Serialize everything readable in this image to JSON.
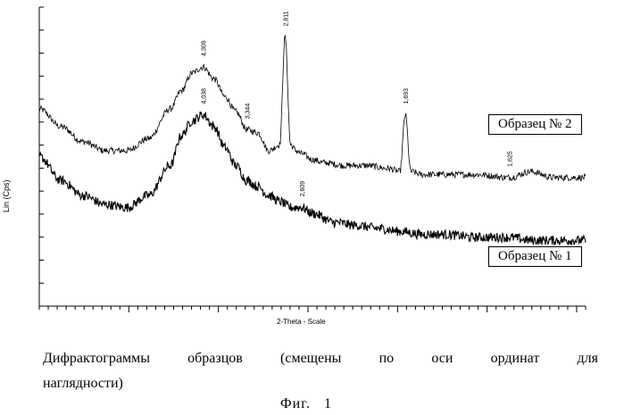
{
  "chart_data": {
    "type": "line",
    "title": "",
    "xlabel": "2-Theta - Scale",
    "ylabel": "Lin (Cps)",
    "xlim": [
      0,
      100
    ],
    "ylim": [
      0,
      100
    ],
    "grid": false,
    "series": [
      {
        "name": "Образец № 2",
        "legend": "Образец № 2",
        "color": "#000000",
        "x": [
          0,
          4,
          8,
          12,
          16,
          20,
          24,
          26,
          28,
          30,
          32,
          34,
          36,
          38,
          40,
          42,
          44,
          45,
          46,
          47,
          48,
          50,
          52,
          56,
          60,
          64,
          66,
          67,
          68,
          70,
          74,
          80,
          86,
          90,
          94,
          100
        ],
        "y": [
          66,
          60,
          55,
          52,
          52,
          56,
          66,
          72,
          78,
          80,
          76,
          70,
          65,
          59,
          58,
          52,
          54,
          90,
          54,
          52,
          51,
          49,
          48,
          47,
          47,
          46,
          45,
          64,
          45,
          44,
          44,
          44,
          43,
          45,
          43,
          43
        ],
        "peaks": [
          {
            "x": 30,
            "label": "4,309"
          },
          {
            "x": 38,
            "label": "3,344"
          },
          {
            "x": 45,
            "label": "2,811"
          },
          {
            "x": 67,
            "label": "1,693"
          },
          {
            "x": 86,
            "label": "1,625"
          }
        ]
      },
      {
        "name": "Образец № 1",
        "legend": "Образец № 1",
        "color": "#000000",
        "x": [
          0,
          4,
          8,
          12,
          16,
          20,
          24,
          26,
          28,
          30,
          32,
          34,
          36,
          38,
          40,
          42,
          44,
          46,
          48,
          50,
          54,
          58,
          62,
          66,
          70,
          74,
          80,
          86,
          90,
          94,
          100
        ],
        "y": [
          50,
          42,
          37,
          34,
          33,
          37,
          47,
          57,
          62,
          64,
          60,
          53,
          47,
          42,
          40,
          37,
          35,
          33,
          33,
          31,
          28,
          27,
          26,
          25,
          24,
          24,
          23,
          23,
          22,
          22,
          22
        ],
        "peaks": [
          {
            "x": 30,
            "label": "4,038"
          },
          {
            "x": 48,
            "label": "2,609"
          }
        ]
      }
    ],
    "caption": "Дифрактограммы образцов (смещены по оси ординат для",
    "caption_line2": "наглядности)",
    "figure_label": "Фиг.   1"
  }
}
